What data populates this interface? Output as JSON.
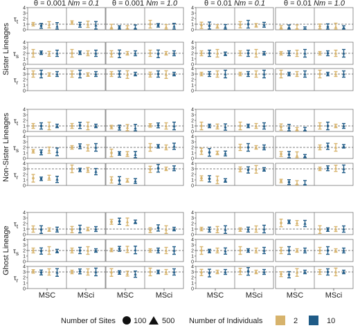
{
  "columns": [
    {
      "theta": "θ = 0.001",
      "nm": "Nm = 0.1"
    },
    {
      "theta": "θ = 0.001",
      "nm": "Nm = 1.0"
    },
    {
      "theta": "θ = 0.01",
      "nm": "Nm = 0.1"
    },
    {
      "theta": "θ = 0.01",
      "nm": "Nm = 1.0"
    }
  ],
  "groups": [
    "Sister Lineages",
    "Non-Sister Lineages",
    "Ghost Lineage"
  ],
  "row_labels": [
    "τt",
    "τs",
    "τr",
    "τt",
    "τs",
    "τr",
    "τt",
    "τs",
    "τr"
  ],
  "models": [
    "MSC",
    "MSci"
  ],
  "legend": {
    "sites_title": "Number of Sites",
    "sites": [
      "100",
      "500"
    ],
    "individuals_title": "Number of Individuals",
    "individuals": [
      "2",
      "10"
    ]
  },
  "colors": {
    "ind2": "#d7b36c",
    "ind10": "#1f5b87",
    "ref": "#555555",
    "axis": "#1a1a1a",
    "panel_border": "#666666"
  },
  "chart_data": {
    "type": "scatter",
    "description_of_structure": "4 columns x 9 rows of panels; each panel has MSC and MSci halves with 4 estimates (100/500 sites x 2/10 individuals) shown as point + interval",
    "ylim": [
      0,
      4
    ],
    "yticks": [
      0,
      1,
      2,
      3,
      4
    ],
    "reference_values": [
      1,
      2,
      3,
      1,
      2,
      3,
      1,
      2,
      3
    ],
    "estimates": [
      [
        [
          1.0,
          0.7,
          0.9,
          0.6,
          1.3,
          0.9,
          1.0,
          0.8
        ],
        [
          0.3,
          0.4,
          0.3,
          0.3,
          1.0,
          0.8,
          0.5,
          0.6
        ],
        [
          0.8,
          0.7,
          0.6,
          0.5,
          0.9,
          1.0,
          0.8,
          0.9
        ],
        [
          0.3,
          0.3,
          0.2,
          0.2,
          0.6,
          0.5,
          0.5,
          0.4
        ]
      ],
      [
        [
          2.0,
          2.1,
          1.9,
          2.0,
          2.0,
          2.1,
          2.0,
          2.0
        ],
        [
          1.9,
          1.9,
          2.0,
          2.0,
          2.0,
          1.9,
          2.0,
          2.0
        ],
        [
          2.0,
          2.0,
          2.0,
          1.9,
          2.0,
          2.0,
          2.0,
          2.0
        ],
        [
          2.0,
          2.0,
          2.0,
          2.0,
          2.0,
          2.0,
          2.0,
          2.0
        ]
      ],
      [
        [
          3.0,
          3.0,
          2.9,
          3.0,
          3.0,
          3.0,
          2.9,
          3.0
        ],
        [
          3.0,
          3.0,
          2.9,
          3.0,
          2.9,
          3.0,
          2.9,
          3.0
        ],
        [
          3.0,
          3.0,
          3.0,
          3.0,
          3.0,
          3.0,
          3.0,
          3.0
        ],
        [
          3.0,
          3.0,
          3.0,
          3.0,
          3.0,
          3.0,
          3.0,
          3.0
        ]
      ],
      [
        [
          1.0,
          1.0,
          1.0,
          1.0,
          1.0,
          1.1,
          1.0,
          1.0
        ],
        [
          0.8,
          0.7,
          0.7,
          0.6,
          1.1,
          1.1,
          1.0,
          1.0
        ],
        [
          1.0,
          1.0,
          0.9,
          0.8,
          1.0,
          1.0,
          1.0,
          1.0
        ],
        [
          0.8,
          0.6,
          0.4,
          0.3,
          1.0,
          1.0,
          1.0,
          1.0
        ]
      ],
      [
        [
          1.3,
          1.1,
          1.5,
          1.2,
          2.0,
          2.2,
          1.9,
          2.0
        ],
        [
          1.0,
          0.9,
          0.8,
          0.7,
          2.0,
          2.2,
          2.0,
          2.2
        ],
        [
          1.3,
          1.1,
          1.0,
          0.9,
          2.0,
          2.0,
          2.0,
          2.0
        ],
        [
          0.8,
          0.7,
          0.5,
          0.4,
          2.0,
          2.2,
          2.0,
          2.2
        ]
      ],
      [
        [
          1.3,
          1.2,
          1.4,
          1.1,
          3.0,
          2.8,
          2.8,
          2.5
        ],
        [
          1.0,
          0.9,
          0.9,
          0.8,
          2.9,
          3.1,
          3.0,
          3.1
        ],
        [
          1.3,
          1.2,
          1.0,
          0.9,
          2.9,
          2.8,
          2.9,
          2.9
        ],
        [
          0.8,
          0.6,
          0.3,
          0.2,
          3.0,
          3.1,
          3.1,
          3.0
        ]
      ],
      [
        [
          1.0,
          0.9,
          0.9,
          0.9,
          0.9,
          1.0,
          1.0,
          1.0
        ],
        [
          2.3,
          2.4,
          2.3,
          2.3,
          0.8,
          1.2,
          0.9,
          1.0
        ],
        [
          1.0,
          0.9,
          0.9,
          0.9,
          0.9,
          0.9,
          1.0,
          1.0
        ],
        [
          2.1,
          2.3,
          2.1,
          2.0,
          0.9,
          0.9,
          1.0,
          1.0
        ]
      ],
      [
        [
          2.0,
          1.9,
          2.0,
          1.9,
          2.0,
          2.0,
          2.0,
          2.0
        ],
        [
          2.1,
          2.3,
          2.2,
          2.1,
          2.0,
          2.0,
          2.0,
          2.0
        ],
        [
          2.0,
          1.9,
          2.0,
          1.9,
          2.0,
          2.0,
          2.0,
          2.0
        ],
        [
          2.0,
          2.0,
          2.0,
          2.0,
          2.0,
          2.0,
          2.0,
          2.0
        ]
      ],
      [
        [
          3.1,
          2.9,
          3.0,
          2.9,
          3.0,
          3.1,
          3.0,
          3.0
        ],
        [
          2.9,
          2.9,
          2.7,
          2.6,
          3.0,
          3.0,
          3.0,
          3.0
        ],
        [
          2.9,
          2.8,
          3.0,
          3.0,
          3.1,
          3.1,
          3.0,
          3.0
        ],
        [
          2.6,
          2.5,
          2.9,
          3.0,
          3.0,
          3.0,
          3.0,
          3.0
        ]
      ]
    ],
    "ordering": "each row lists columns in order; each column lists [MSC:100/2,100/10,500/2,500/10, MSci:100/2,100/10,500/2,500/10]"
  }
}
